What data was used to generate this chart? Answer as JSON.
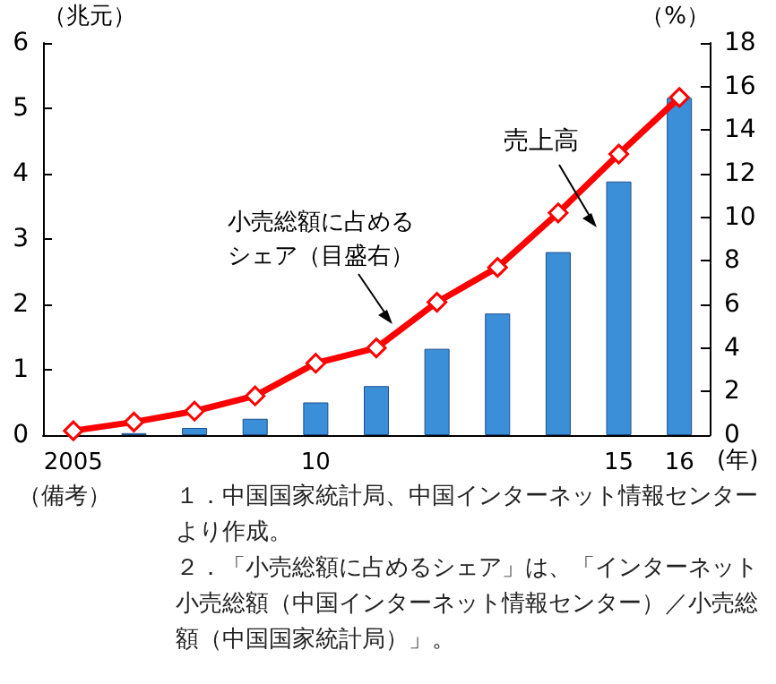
{
  "chart_data": {
    "type": "bar",
    "categories": [
      "2005",
      null,
      null,
      null,
      "10",
      null,
      null,
      null,
      null,
      "15",
      "16"
    ],
    "xlabel": "(年)",
    "ylabel": "（兆元）",
    "y2label": "（%）",
    "series": [
      {
        "name": "売上高",
        "color": "#3b8ed8",
        "values": [
          null,
          0.03,
          0.11,
          0.25,
          0.5,
          0.75,
          1.32,
          1.86,
          2.8,
          3.88,
          5.16
        ]
      },
      {
        "name": "小売総額に占めるシェア（目盛右）",
        "type": "line",
        "axis": "y2",
        "color": "#ff0000",
        "marker": "diamond",
        "values": [
          0.2,
          0.6,
          1.1,
          1.8,
          3.3,
          4.0,
          6.1,
          7.7,
          10.2,
          12.9,
          15.5
        ]
      }
    ],
    "ylim": [
      0,
      6
    ],
    "yticks": [
      0,
      1,
      2,
      3,
      4,
      5,
      6
    ],
    "y2lim": [
      0,
      18
    ],
    "y2ticks": [
      0,
      2,
      4,
      6,
      8,
      10,
      12,
      14,
      16,
      18
    ],
    "grid": false,
    "legend": false,
    "annotations": [
      "（備考）１．中国国家統計局、中国インターネット情報センターより作成。",
      "２．「小売総額に占めるシェア」は、「インターネット小売総額（中国インターネット情報センター）／小売総額（中国国家統計局）」。"
    ]
  }
}
